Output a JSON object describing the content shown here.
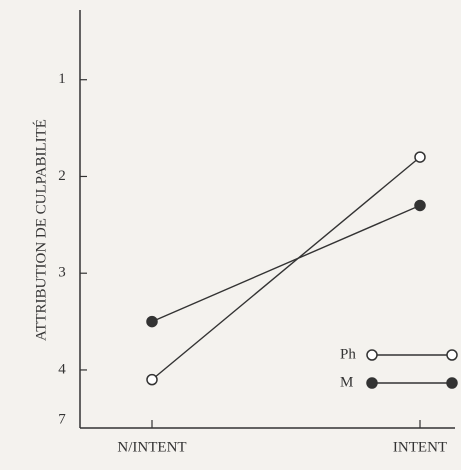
{
  "chart_data": {
    "type": "line",
    "y_label": "ATTRIBUTION DE CULPABILITÉ",
    "categories": [
      "N/INTENT",
      "INTENT"
    ],
    "series": [
      {
        "name": "Ph",
        "color": "#333333",
        "marker": "open",
        "values": [
          4.1,
          1.8
        ]
      },
      {
        "name": "M",
        "color": "#333333",
        "marker": "filled",
        "values": [
          3.5,
          2.3
        ]
      }
    ],
    "ylim": [
      0.3,
      4.6
    ],
    "y_inverted": true,
    "yticks": [
      1,
      2,
      3,
      4
    ],
    "axis_break_label": "7",
    "legend": "lower-right",
    "grid": false
  }
}
